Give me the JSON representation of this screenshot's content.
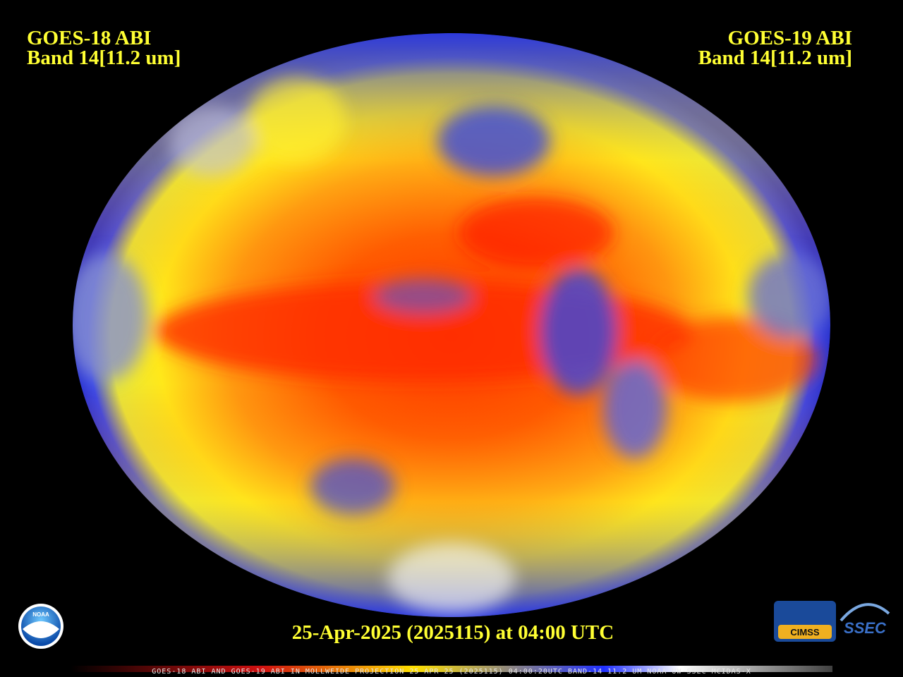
{
  "header": {
    "left_title": "GOES-18 ABI",
    "left_band": "Band 14[11.2 um]",
    "right_title": "GOES-19 ABI",
    "right_band": "Band 14[11.2 um]"
  },
  "timestamp": "25-Apr-2025 (2025115) at 04:00 UTC",
  "footer": "GOES-18 ABI AND GOES-19 ABI IN MOLLWEIDE PROJECTION 25 APR 25 (2025115) 04:00:20UTC BAND-14 11.2 UM NOAA UW-SSEC MCIDAS-X",
  "logos": {
    "noaa": "NOAA",
    "cimss": "CIMSS",
    "ssec": "SSEC"
  }
}
